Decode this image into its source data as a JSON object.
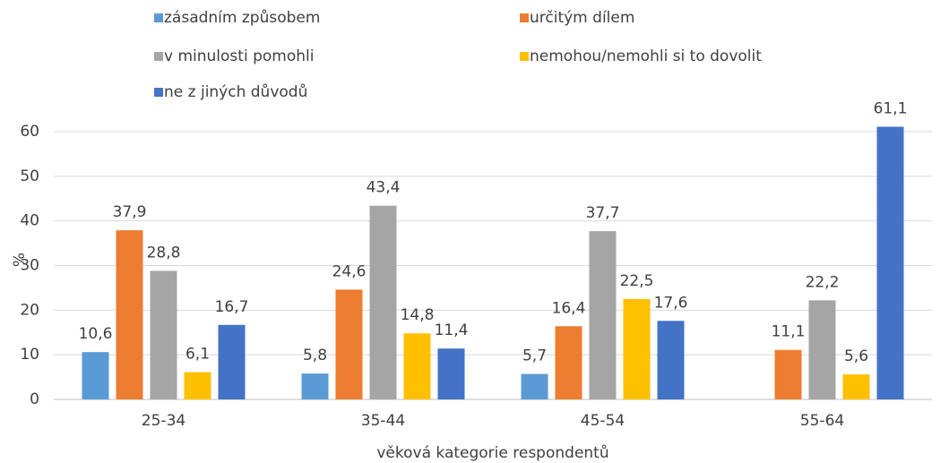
{
  "chart_data": {
    "type": "bar",
    "y_label": "%",
    "x_label": "věková kategorie respondentů",
    "categories": [
      "25-34",
      "35-44",
      "45-54",
      "55-64"
    ],
    "series": [
      {
        "name": "zásadním způsobem",
        "color": "#5b9bd5",
        "values": [
          10.6,
          5.8,
          5.7,
          null
        ],
        "value_labels": [
          "10,6",
          "5,8",
          "5,7",
          null
        ]
      },
      {
        "name": "určitým dílem",
        "color": "#ed7d31",
        "values": [
          37.9,
          24.6,
          16.4,
          11.1
        ],
        "value_labels": [
          "37,9",
          "24,6",
          "16,4",
          "11,1"
        ]
      },
      {
        "name": "v minulosti pomohli",
        "color": "#a5a5a5",
        "values": [
          28.8,
          43.4,
          37.7,
          22.2
        ],
        "value_labels": [
          "28,8",
          "43,4",
          "37,7",
          "22,2"
        ]
      },
      {
        "name": "nemohou/nemohli si to dovolit",
        "color": "#ffc000",
        "values": [
          6.1,
          14.8,
          22.5,
          5.6
        ],
        "value_labels": [
          "6,1",
          "14,8",
          "22,5",
          "5,6"
        ]
      },
      {
        "name": "ne z jiných důvodů",
        "color": "#4472c4",
        "values": [
          16.7,
          11.4,
          17.6,
          61.1
        ],
        "value_labels": [
          "16,7",
          "11,4",
          "17,6",
          "61,1"
        ]
      }
    ],
    "ylim": [
      0,
      60
    ],
    "yticks": [
      0,
      10,
      20,
      30,
      40,
      50,
      60
    ],
    "grid": true,
    "legend": "top"
  }
}
